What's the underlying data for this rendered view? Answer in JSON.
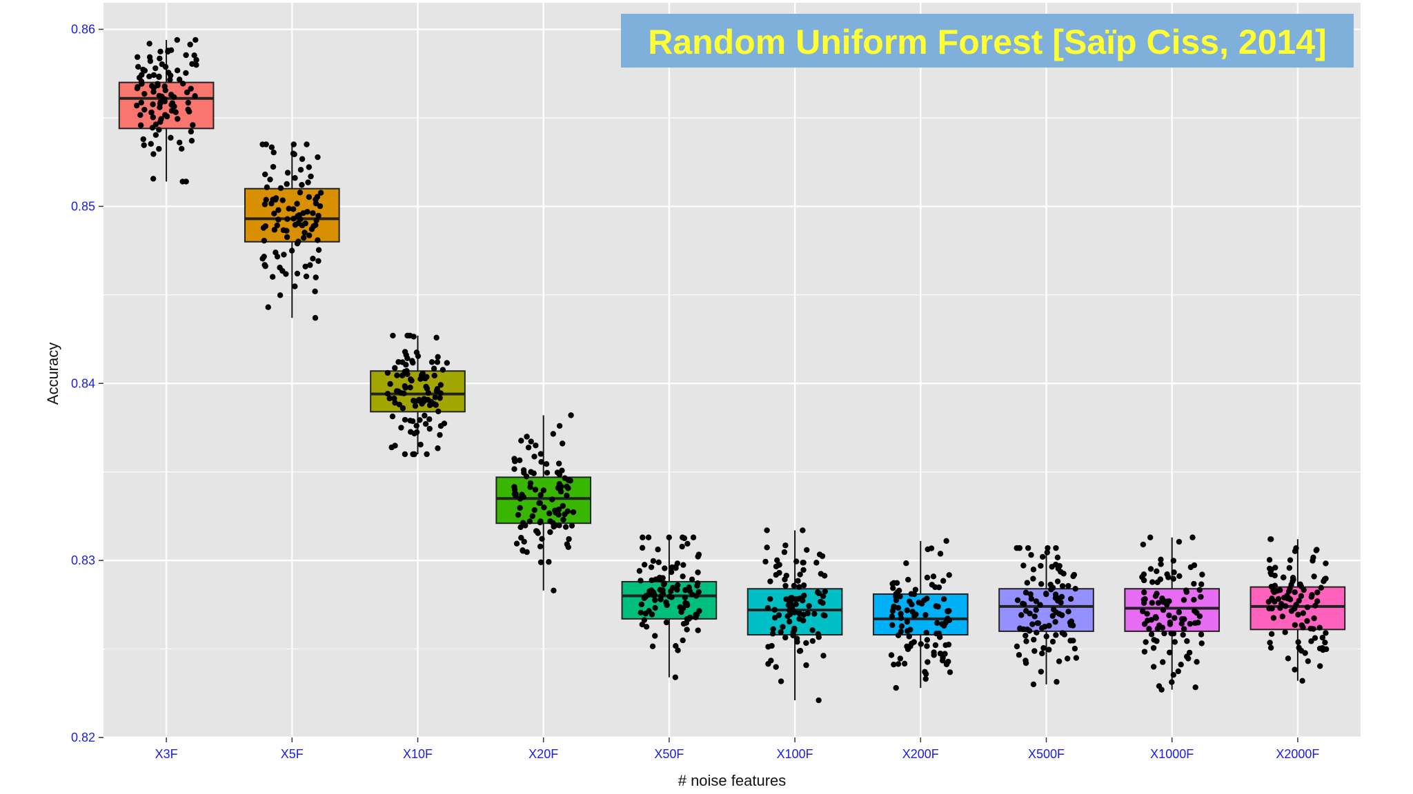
{
  "chart_data": {
    "type": "boxplot",
    "title": "Random Uniform Forest [Saïp Ciss, 2014]",
    "title_style": {
      "text_color": "#ffff33",
      "box_color": "#7fb0dc",
      "placement": "top-right"
    },
    "xlabel": "# noise features",
    "ylabel": "Accuracy",
    "ylim": [
      0.82,
      0.8615
    ],
    "yticks": [
      0.82,
      0.83,
      0.84,
      0.85,
      0.86
    ],
    "grid": true,
    "legend": "none",
    "panel_color": "#e5e5e5",
    "grid_color": "#ffffff",
    "points_per_group": 100,
    "categories": [
      "X3F",
      "X5F",
      "X10F",
      "X20F",
      "X50F",
      "X100F",
      "X200F",
      "X500F",
      "X1000F",
      "X2000F"
    ],
    "colors": [
      "#f8766d",
      "#d89000",
      "#a3a500",
      "#39b600",
      "#00bf7d",
      "#00bfc4",
      "#00b0f6",
      "#9590ff",
      "#e76bf3",
      "#ff62bc"
    ],
    "boxes": [
      {
        "category": "X3F",
        "min": 0.8514,
        "q1": 0.8544,
        "median": 0.8561,
        "q3": 0.857,
        "max": 0.8594
      },
      {
        "category": "X5F",
        "min": 0.8437,
        "q1": 0.848,
        "median": 0.8493,
        "q3": 0.851,
        "max": 0.8535
      },
      {
        "category": "X10F",
        "min": 0.836,
        "q1": 0.8384,
        "median": 0.8394,
        "q3": 0.8407,
        "max": 0.8427
      },
      {
        "category": "X20F",
        "min": 0.8283,
        "q1": 0.8321,
        "median": 0.8335,
        "q3": 0.8347,
        "max": 0.8382
      },
      {
        "category": "X50F",
        "min": 0.8234,
        "q1": 0.8267,
        "median": 0.828,
        "q3": 0.8288,
        "max": 0.8313
      },
      {
        "category": "X100F",
        "min": 0.8221,
        "q1": 0.8258,
        "median": 0.8272,
        "q3": 0.8284,
        "max": 0.8317
      },
      {
        "category": "X200F",
        "min": 0.8228,
        "q1": 0.8258,
        "median": 0.8267,
        "q3": 0.8281,
        "max": 0.8311
      },
      {
        "category": "X500F",
        "min": 0.823,
        "q1": 0.826,
        "median": 0.8274,
        "q3": 0.8284,
        "max": 0.8307
      },
      {
        "category": "X1000F",
        "min": 0.8227,
        "q1": 0.826,
        "median": 0.8273,
        "q3": 0.8284,
        "max": 0.8313
      },
      {
        "category": "X2000F",
        "min": 0.8232,
        "q1": 0.8261,
        "median": 0.8274,
        "q3": 0.8285,
        "max": 0.8312
      }
    ]
  }
}
